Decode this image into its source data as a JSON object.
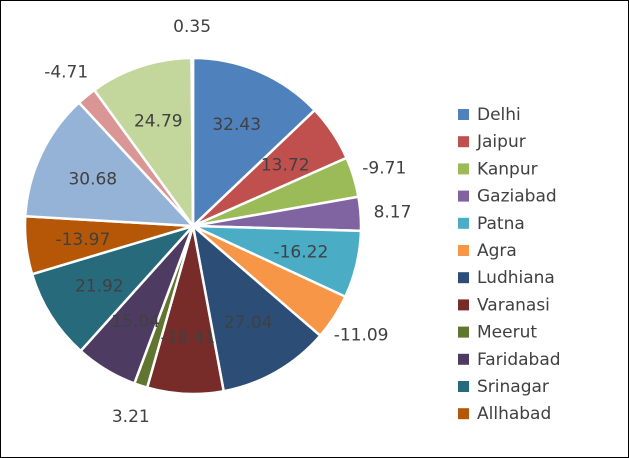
{
  "chart_data": {
    "type": "pie",
    "title": "",
    "legend_position": "right",
    "label_color_inside": "#404040",
    "label_color_outside": "#404040",
    "series": [
      {
        "name": "Delhi",
        "value": 32.43,
        "color": "#4F81BD"
      },
      {
        "name": "Jaipur",
        "value": 13.72,
        "color": "#C0504D"
      },
      {
        "name": "Kanpur",
        "value": -9.71,
        "color": "#9BBB59"
      },
      {
        "name": "Gaziabad",
        "value": 8.17,
        "color": "#8064A2"
      },
      {
        "name": "Patna",
        "value": -16.22,
        "color": "#4BACC6"
      },
      {
        "name": "Agra",
        "value": -11.09,
        "color": "#F79646"
      },
      {
        "name": "Ludhiana",
        "value": 27.04,
        "color": "#2C4D75"
      },
      {
        "name": "Varanasi",
        "value": -18.41,
        "color": "#772C2A"
      },
      {
        "name": "Meerut",
        "value": 3.21,
        "color": "#5F7530"
      },
      {
        "name": "Faridabad",
        "value": 15.04,
        "color": "#4D3B62"
      },
      {
        "name": "Srinagar",
        "value": 21.92,
        "color": "#276A7C"
      },
      {
        "name": "Allhabad",
        "value": -13.97,
        "color": "#B65708"
      },
      {
        "name": "",
        "value": 30.68,
        "color": "#95B3D7"
      },
      {
        "name": "",
        "value": -4.71,
        "color": "#D99694"
      },
      {
        "name": "",
        "value": 24.79,
        "color": "#C3D69B"
      },
      {
        "name": "",
        "value": 0.35,
        "color": "#B3A2C7"
      }
    ]
  }
}
